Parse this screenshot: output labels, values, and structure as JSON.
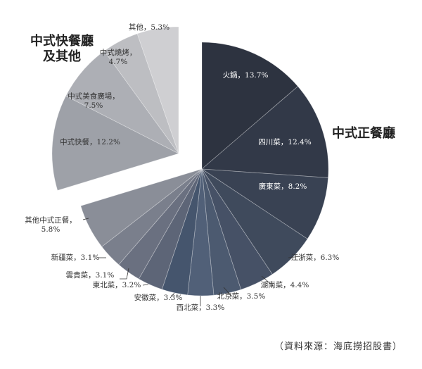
{
  "chart_data": {
    "type": "pie",
    "groups": [
      {
        "name": "中式正餐廳",
        "exploded": false
      },
      {
        "name": "中式快餐廳\n及其他",
        "exploded": true
      }
    ],
    "slices": [
      {
        "label": "火鍋，13.7%",
        "value": 13.7,
        "group": 0,
        "color": "#2d3340"
      },
      {
        "label": "四川菜，12.4%",
        "value": 12.4,
        "group": 0,
        "color": "#323948"
      },
      {
        "label": "廣東菜，8.2%",
        "value": 8.2,
        "group": 0,
        "color": "#394253"
      },
      {
        "label": "江浙菜，6.3%",
        "value": 6.3,
        "group": 0,
        "color": "#3f4a5c"
      },
      {
        "label": "湖南菜，4.4%",
        "value": 4.4,
        "group": 0,
        "color": "#465166"
      },
      {
        "label": "北京菜，3.5%",
        "value": 3.5,
        "group": 0,
        "color": "#4c5a70"
      },
      {
        "label": "西北菜，3.3%",
        "value": 3.3,
        "group": 0,
        "color": "#516078"
      },
      {
        "label": "安徽菜，3.3%",
        "value": 3.3,
        "group": 0,
        "color": "#45556d"
      },
      {
        "label": "東北菜，3.2%",
        "value": 3.2,
        "group": 0,
        "color": "#5d6577"
      },
      {
        "label": "雲貴菜，3.1%",
        "value": 3.1,
        "group": 0,
        "color": "#6a7080"
      },
      {
        "label": "新疆菜，3.1%",
        "value": 3.1,
        "group": 0,
        "color": "#7a7f8c"
      },
      {
        "label": "其他中式正餐，\n5.8%",
        "value": 5.8,
        "group": 0,
        "color": "#8a8e98"
      },
      {
        "label": "中式快餐，12.2%",
        "value": 12.2,
        "group": 1,
        "color": "#9ea1a8"
      },
      {
        "label": "中式美食廣場，\n7.5%",
        "value": 7.5,
        "group": 1,
        "color": "#adafb5"
      },
      {
        "label": "中式燒烤，\n4.7%",
        "value": 4.7,
        "group": 1,
        "color": "#bdbec2"
      },
      {
        "label": "其他，5.3%",
        "value": 5.3,
        "group": 1,
        "color": "#cfcfd2"
      }
    ]
  },
  "source_note": "（資料來源：海底撈招股書）"
}
